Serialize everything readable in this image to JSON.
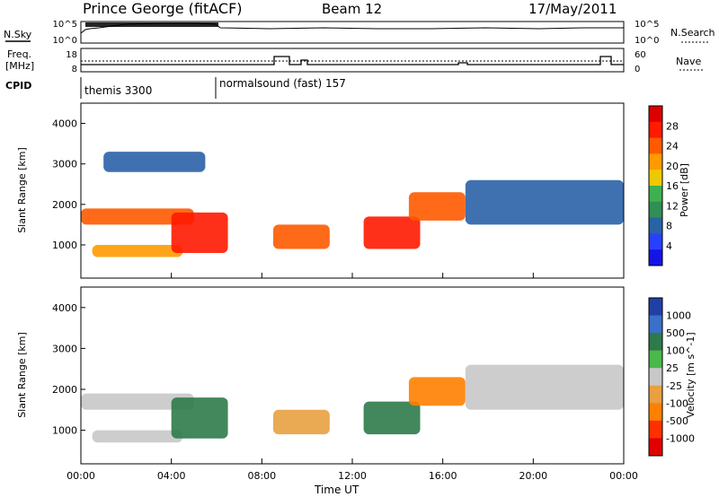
{
  "header": {
    "station": "Prince George (fitACF)",
    "beam": "Beam 12",
    "date": "17/May/2011"
  },
  "noise_panel": {
    "left_label": "N.Sky",
    "right_label": "N.Search",
    "left_ticks": [
      "10^5",
      "10^0"
    ],
    "right_ticks": [
      "10^5",
      "10^0"
    ]
  },
  "freq_panel": {
    "left_label_line1": "Freq.",
    "left_label_line2": "[MHz]",
    "right_label": "Nave",
    "left_ticks": [
      "18",
      "8"
    ],
    "right_ticks": [
      "60",
      "0"
    ]
  },
  "cpid": {
    "label": "CPID",
    "segments": [
      {
        "name": "themis 3300",
        "start_hour": 0,
        "end_hour": 5.95
      },
      {
        "name": "normalsound (fast) 157",
        "start_hour": 5.95,
        "end_hour": 24
      }
    ]
  },
  "colors": {
    "power": [
      "#1414e6",
      "#2840ff",
      "#2a62a8",
      "#2f8f55",
      "#3fb04f",
      "#f0c800",
      "#ff9a00",
      "#ff5a00",
      "#ff1a00",
      "#dc0000"
    ],
    "velocity": [
      "#2040a8",
      "#3a70c8",
      "#2f7a4a",
      "#4ab84a",
      "#c8c8c8",
      "#e8a040",
      "#ff8000",
      "#ff3000",
      "#e00000"
    ]
  },
  "chart_data": [
    {
      "type": "heatmap",
      "title": "",
      "xlabel": "Time UT",
      "ylabel": "Slant Range [km]",
      "xlim_hours": [
        0,
        24
      ],
      "ylim_km": [
        180,
        4500
      ],
      "x_ticks": [
        "00:00",
        "04:00",
        "08:00",
        "12:00",
        "16:00",
        "20:00",
        "00:00"
      ],
      "y_ticks": [
        "1000",
        "2000",
        "3000",
        "4000"
      ],
      "colorbar": {
        "label": "Power [dB]",
        "ticks": [
          "28",
          "24",
          "20",
          "16",
          "12",
          "8",
          "4"
        ],
        "range": [
          0,
          30
        ]
      },
      "echo_bands": [
        {
          "t_start": 0.0,
          "t_end": 5.0,
          "range_km": [
            1500,
            1900
          ],
          "level": 22
        },
        {
          "t_start": 0.5,
          "t_end": 4.5,
          "range_km": [
            700,
            1000
          ],
          "level": 20
        },
        {
          "t_start": 4.0,
          "t_end": 6.5,
          "range_km": [
            800,
            1800
          ],
          "level": 24
        },
        {
          "t_start": 1.0,
          "t_end": 5.5,
          "range_km": [
            2800,
            3300
          ],
          "level": 6
        },
        {
          "t_start": 8.5,
          "t_end": 11.0,
          "range_km": [
            900,
            1500
          ],
          "level": 22
        },
        {
          "t_start": 12.5,
          "t_end": 15.0,
          "range_km": [
            900,
            1700
          ],
          "level": 24
        },
        {
          "t_start": 14.5,
          "t_end": 17.0,
          "range_km": [
            1600,
            2300
          ],
          "level": 22
        },
        {
          "t_start": 17.0,
          "t_end": 24.0,
          "range_km": [
            1500,
            2600
          ],
          "level": 6
        }
      ]
    },
    {
      "type": "heatmap",
      "title": "",
      "xlabel": "Time UT",
      "ylabel": "Slant Range [km]",
      "xlim_hours": [
        0,
        24
      ],
      "ylim_km": [
        180,
        4500
      ],
      "x_ticks": [
        "00:00",
        "04:00",
        "08:00",
        "12:00",
        "16:00",
        "20:00",
        "00:00"
      ],
      "y_ticks": [
        "1000",
        "2000",
        "3000",
        "4000"
      ],
      "colorbar": {
        "label": "Velocity [m s^-1]",
        "ticks": [
          "1000",
          "500",
          "100",
          "25",
          "-25",
          "-100",
          "-500",
          "-1000"
        ],
        "range": [
          -1000,
          1000
        ]
      },
      "echo_bands": [
        {
          "t_start": 0.0,
          "t_end": 5.0,
          "range_km": [
            1500,
            1900
          ],
          "velocity": 0
        },
        {
          "t_start": 0.5,
          "t_end": 4.5,
          "range_km": [
            700,
            1000
          ],
          "velocity": 0
        },
        {
          "t_start": 4.0,
          "t_end": 6.5,
          "range_km": [
            800,
            1800
          ],
          "velocity": 200
        },
        {
          "t_start": 8.5,
          "t_end": 11.0,
          "range_km": [
            900,
            1500
          ],
          "velocity": -100
        },
        {
          "t_start": 12.5,
          "t_end": 15.0,
          "range_km": [
            900,
            1700
          ],
          "velocity": 150
        },
        {
          "t_start": 14.5,
          "t_end": 17.0,
          "range_km": [
            1600,
            2300
          ],
          "velocity": -300
        },
        {
          "t_start": 17.0,
          "t_end": 24.0,
          "range_km": [
            1500,
            2600
          ],
          "velocity": 0
        }
      ]
    }
  ]
}
